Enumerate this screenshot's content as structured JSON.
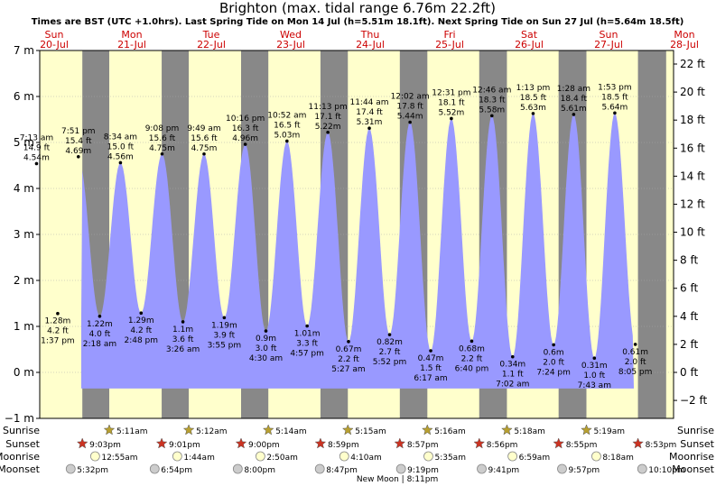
{
  "title": "Brighton (max. tidal range 6.76m 22.2ft)",
  "subtitle": "Times are BST (UTC +1.0hrs). Last Spring Tide on Mon 14 Jul (h=5.51m 18.1ft). Next Spring Tide on Sun 27 Jul (h=5.64m 18.5ft)",
  "chart_data": {
    "type": "area",
    "y_left_unit": "m",
    "y_right_unit": "ft",
    "ylim_m": [
      -1,
      7
    ],
    "ylim_ft": [
      -2,
      22
    ],
    "days": [
      {
        "dow": "Sun",
        "date": "20-Jul"
      },
      {
        "dow": "Mon",
        "date": "21-Jul"
      },
      {
        "dow": "Tue",
        "date": "22-Jul"
      },
      {
        "dow": "Wed",
        "date": "23-Jul"
      },
      {
        "dow": "Thu",
        "date": "24-Jul"
      },
      {
        "dow": "Fri",
        "date": "25-Jul"
      },
      {
        "dow": "Sat",
        "date": "26-Jul"
      },
      {
        "dow": "Sun",
        "date": "27-Jul"
      },
      {
        "dow": "Mon",
        "date": "28-Jul"
      }
    ],
    "tides": [
      {
        "day": 0,
        "time": "7:13 am",
        "m": 4.54,
        "ft": "14.9 ft",
        "type": "high"
      },
      {
        "day": 0,
        "time": "1:37 pm",
        "m": 1.28,
        "ft": "4.2 ft",
        "type": "low"
      },
      {
        "day": 0,
        "time": "7:51 pm",
        "m": 4.69,
        "ft": "15.4 ft",
        "type": "high"
      },
      {
        "day": 1,
        "time": "2:18 am",
        "m": 1.22,
        "ft": "4.0 ft",
        "type": "low"
      },
      {
        "day": 1,
        "time": "8:34 am",
        "m": 4.56,
        "ft": "15.0 ft",
        "type": "high"
      },
      {
        "day": 1,
        "time": "2:48 pm",
        "m": 1.29,
        "ft": "4.2 ft",
        "type": "low"
      },
      {
        "day": 1,
        "time": "9:08 pm",
        "m": 4.75,
        "ft": "15.6 ft",
        "type": "high"
      },
      {
        "day": 2,
        "time": "3:26 am",
        "m": 1.1,
        "ft": "3.6 ft",
        "type": "low"
      },
      {
        "day": 2,
        "time": "9:49 am",
        "m": 4.75,
        "ft": "15.6 ft",
        "type": "high"
      },
      {
        "day": 2,
        "time": "3:55 pm",
        "m": 1.19,
        "ft": "3.9 ft",
        "type": "low"
      },
      {
        "day": 2,
        "time": "10:16 pm",
        "m": 4.96,
        "ft": "16.3 ft",
        "type": "high"
      },
      {
        "day": 3,
        "time": "4:30 am",
        "m": 0.9,
        "ft": "3.0 ft",
        "type": "low"
      },
      {
        "day": 3,
        "time": "10:52 am",
        "m": 5.03,
        "ft": "16.5 ft",
        "type": "high"
      },
      {
        "day": 3,
        "time": "4:57 pm",
        "m": 1.01,
        "ft": "3.3 ft",
        "type": "low"
      },
      {
        "day": 3,
        "time": "11:13 pm",
        "m": 5.22,
        "ft": "17.1 ft",
        "type": "high"
      },
      {
        "day": 4,
        "time": "5:27 am",
        "m": 0.67,
        "ft": "2.2 ft",
        "type": "low"
      },
      {
        "day": 4,
        "time": "11:44 am",
        "m": 5.31,
        "ft": "17.4 ft",
        "type": "high"
      },
      {
        "day": 4,
        "time": "5:52 pm",
        "m": 0.82,
        "ft": "2.7 ft",
        "type": "low"
      },
      {
        "day": 5,
        "time": "12:02 am",
        "m": 5.44,
        "ft": "17.8 ft",
        "type": "high"
      },
      {
        "day": 5,
        "time": "6:17 am",
        "m": 0.47,
        "ft": "1.5 ft",
        "type": "low"
      },
      {
        "day": 5,
        "time": "12:31 pm",
        "m": 5.52,
        "ft": "18.1 ft",
        "type": "high"
      },
      {
        "day": 5,
        "time": "6:40 pm",
        "m": 0.68,
        "ft": "2.2 ft",
        "type": "low"
      },
      {
        "day": 6,
        "time": "12:46 am",
        "m": 5.58,
        "ft": "18.3 ft",
        "type": "high"
      },
      {
        "day": 6,
        "time": "7:02 am",
        "m": 0.34,
        "ft": "1.1 ft",
        "type": "low"
      },
      {
        "day": 6,
        "time": "1:13 pm",
        "m": 5.63,
        "ft": "18.5 ft",
        "type": "high"
      },
      {
        "day": 6,
        "time": "7:24 pm",
        "m": 0.6,
        "ft": "2.0 ft",
        "type": "low"
      },
      {
        "day": 7,
        "time": "1:28 am",
        "m": 5.61,
        "ft": "18.4 ft",
        "type": "high"
      },
      {
        "day": 7,
        "time": "7:43 am",
        "m": 0.31,
        "ft": "1.0 ft",
        "type": "low"
      },
      {
        "day": 7,
        "time": "1:53 pm",
        "m": 5.64,
        "ft": "18.5 ft",
        "type": "high"
      },
      {
        "day": 7,
        "time": "8:05 pm",
        "m": 0.61,
        "ft": "2.0 ft",
        "type": "low"
      }
    ],
    "sunrise": [
      "5:11am",
      "5:12am",
      "5:14am",
      "5:15am",
      "5:16am",
      "5:18am",
      "5:19am"
    ],
    "sunset": [
      "9:03pm",
      "9:01pm",
      "9:00pm",
      "8:59pm",
      "8:57pm",
      "8:56pm",
      "8:55pm",
      "8:53pm"
    ],
    "moonrise": [
      "12:55am",
      "1:44am",
      "2:50am",
      "4:10am",
      "5:35am",
      "6:59am",
      "8:18am"
    ],
    "moonset": [
      "5:32pm",
      "6:54pm",
      "8:00pm",
      "8:47pm",
      "9:19pm",
      "9:41pm",
      "9:57pm",
      "10:10pm"
    ],
    "row_labels": [
      "Sunrise",
      "Sunset",
      "Moonrise",
      "Moonset"
    ],
    "moon_phase": "New Moon | 8:11pm",
    "colors": {
      "day_bg": "#ffffcc",
      "night_bg": "#888888",
      "water": "#9999ff",
      "day_label": "#cc0000",
      "sun_star": "#b8a030",
      "sunset_star": "#cc3322"
    }
  }
}
